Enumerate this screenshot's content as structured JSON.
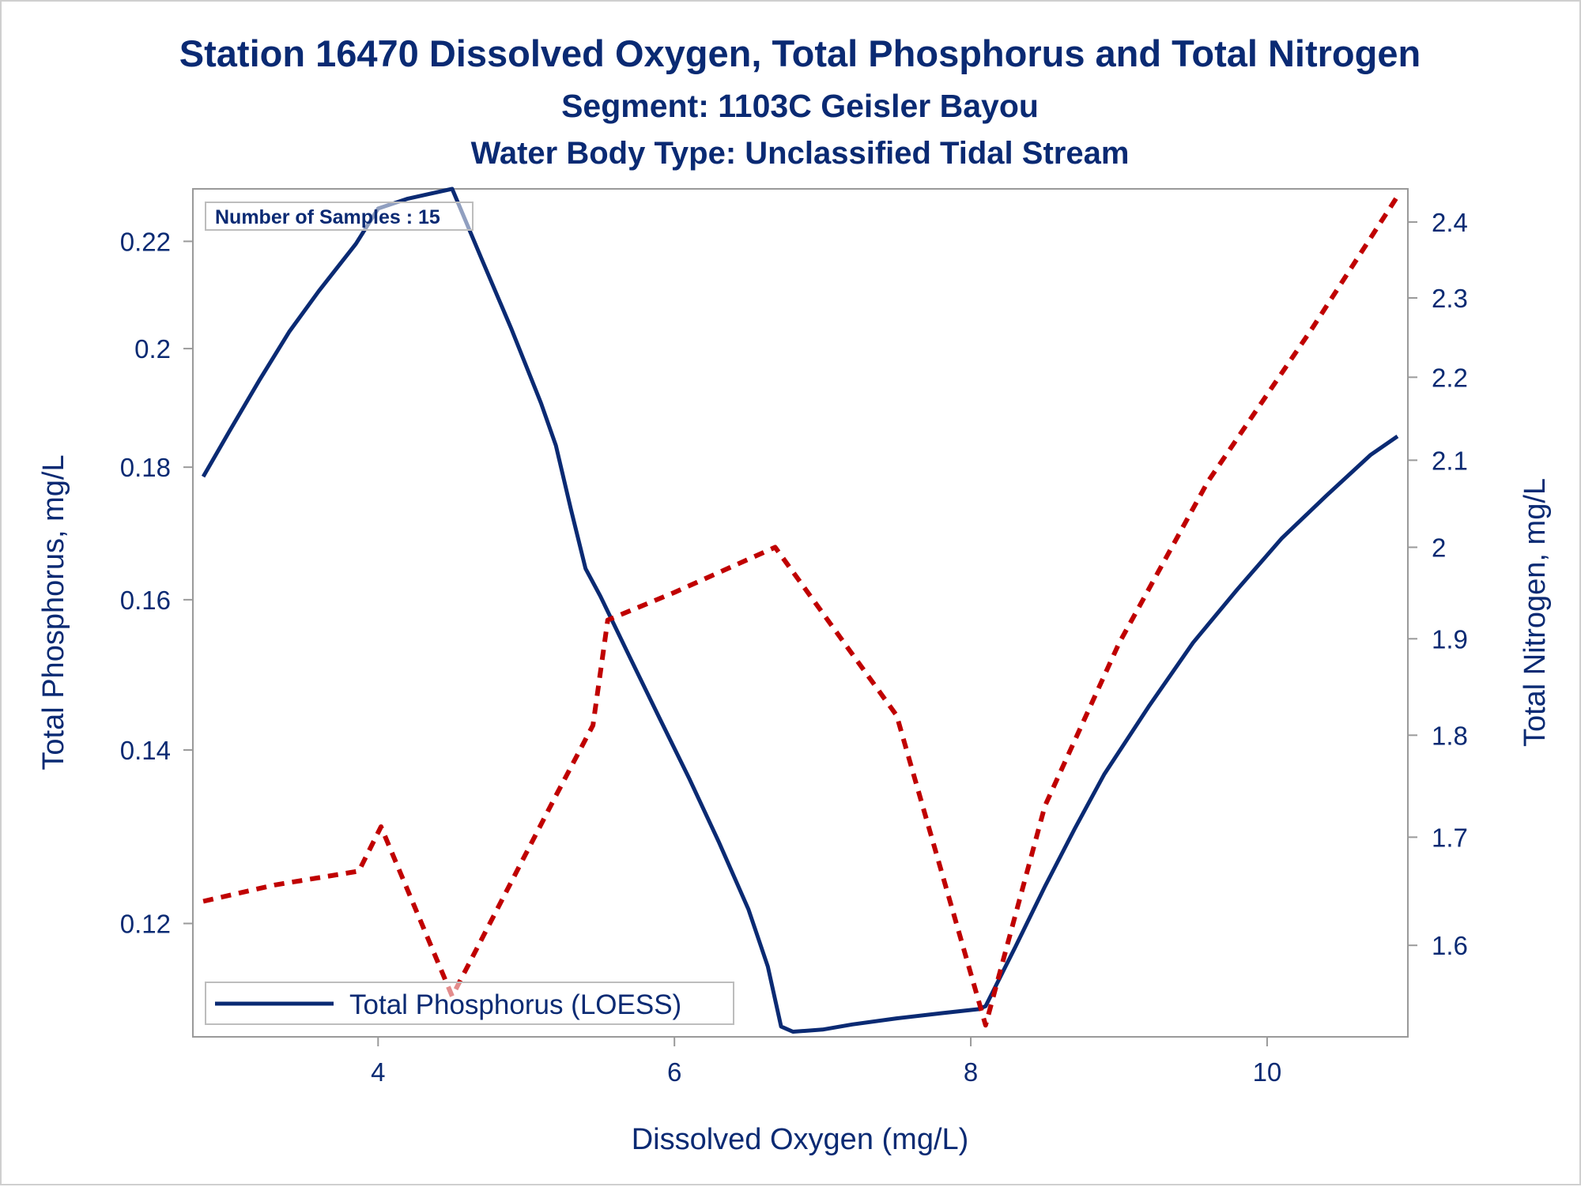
{
  "titles": {
    "main": "Station 16470  Dissolved Oxygen, Total Phosphorus and Total Nitrogen",
    "segment": "Segment: 1103C  Geisler Bayou",
    "water_body": "Water Body Type: Unclassified Tidal Stream"
  },
  "inset": {
    "text": "Number of Samples : 15"
  },
  "legend": {
    "entries": [
      "Total Phosphorus (LOESS)"
    ],
    "placement": "bottom-left-inside"
  },
  "colors": {
    "text": "#0a2a73",
    "phosphorus": "#0a2a73",
    "nitrogen": "#c00000",
    "axis": "#9a9a9a"
  },
  "chart_data": {
    "type": "line",
    "xlabel": "Dissolved Oxygen (mg/L)",
    "ylabel": "Total Phosphorus, mg/L",
    "y2label": "Total Nitrogen, mg/L",
    "xlim": [
      2.75,
      10.95
    ],
    "ylim": [
      0.1085,
      0.2305
    ],
    "y2lim": [
      1.52,
      2.445
    ],
    "xticks": [
      4,
      6,
      8,
      10
    ],
    "yticks": [
      0.12,
      0.14,
      0.16,
      0.18,
      0.2,
      0.22
    ],
    "y2ticks": [
      1.6,
      1.7,
      1.8,
      1.9,
      2,
      2.1,
      2.2,
      2.3,
      2.4
    ],
    "y_scale": "log",
    "y2_scale": "log",
    "grid": false,
    "series": [
      {
        "name": "Total Phosphorus (LOESS)",
        "axis": "left",
        "style": "solid",
        "points": [
          [
            2.82,
            0.1785
          ],
          [
            3.0,
            0.186
          ],
          [
            3.2,
            0.1945
          ],
          [
            3.4,
            0.203
          ],
          [
            3.6,
            0.2105
          ],
          [
            3.85,
            0.2195
          ],
          [
            4.0,
            0.2265
          ],
          [
            4.2,
            0.2285
          ],
          [
            4.35,
            0.2295
          ],
          [
            4.5,
            0.2305
          ],
          [
            4.7,
            0.2165
          ],
          [
            4.9,
            0.2035
          ],
          [
            5.1,
            0.1905
          ],
          [
            5.2,
            0.1835
          ],
          [
            5.3,
            0.1735
          ],
          [
            5.4,
            0.1645
          ],
          [
            5.5,
            0.1605
          ],
          [
            5.7,
            0.152
          ],
          [
            5.9,
            0.144
          ],
          [
            6.1,
            0.1365
          ],
          [
            6.3,
            0.129
          ],
          [
            6.5,
            0.1215
          ],
          [
            6.63,
            0.1155
          ],
          [
            6.72,
            0.1095
          ],
          [
            6.8,
            0.109
          ],
          [
            7.0,
            0.1092
          ],
          [
            7.2,
            0.1097
          ],
          [
            7.5,
            0.1103
          ],
          [
            7.8,
            0.1108
          ],
          [
            8.05,
            0.1112
          ],
          [
            8.1,
            0.1115
          ],
          [
            8.3,
            0.1175
          ],
          [
            8.5,
            0.124
          ],
          [
            8.7,
            0.1305
          ],
          [
            8.9,
            0.137
          ],
          [
            9.2,
            0.1455
          ],
          [
            9.5,
            0.154
          ],
          [
            9.8,
            0.1615
          ],
          [
            10.1,
            0.169
          ],
          [
            10.4,
            0.1755
          ],
          [
            10.7,
            0.182
          ],
          [
            10.88,
            0.185
          ]
        ]
      },
      {
        "name": "",
        "axis": "right",
        "style": "dashed",
        "points": [
          [
            2.82,
            1.64
          ],
          [
            3.3,
            1.655
          ],
          [
            3.87,
            1.668
          ],
          [
            4.02,
            1.71
          ],
          [
            4.5,
            1.555
          ],
          [
            5.2,
            1.74
          ],
          [
            5.45,
            1.81
          ],
          [
            5.55,
            1.92
          ],
          [
            6.0,
            1.95
          ],
          [
            6.68,
            2.0
          ],
          [
            7.5,
            1.82
          ],
          [
            8.1,
            1.53
          ],
          [
            8.5,
            1.73
          ],
          [
            9.0,
            1.895
          ],
          [
            9.6,
            2.075
          ],
          [
            10.3,
            2.26
          ],
          [
            10.88,
            2.435
          ]
        ]
      }
    ]
  }
}
